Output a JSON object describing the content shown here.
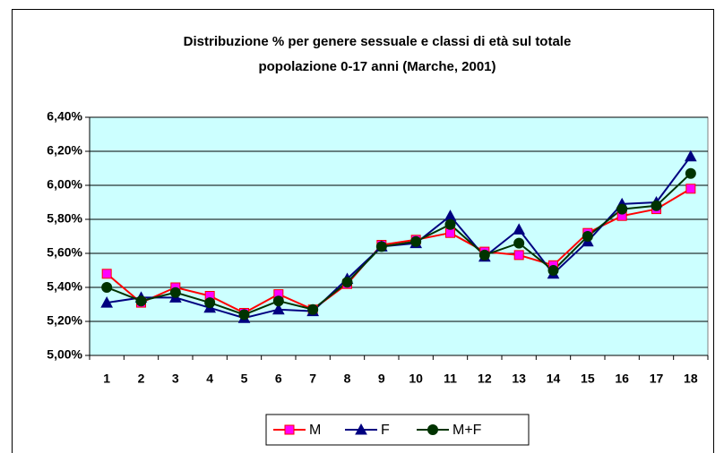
{
  "chart_data": {
    "type": "line",
    "title": [
      "Distribuzione % per genere sessuale e classi di età sul totale",
      "popolazione 0-17 anni (Marche, 2001)"
    ],
    "categories": [
      "1",
      "2",
      "3",
      "4",
      "5",
      "6",
      "7",
      "8",
      "9",
      "10",
      "11",
      "12",
      "13",
      "14",
      "15",
      "16",
      "17",
      "18"
    ],
    "series": [
      {
        "name": "M",
        "color": "#ff0000",
        "marker": "square",
        "marker_color": "#ff00ff",
        "values": [
          5.48,
          5.31,
          5.4,
          5.35,
          5.25,
          5.36,
          5.27,
          5.42,
          5.65,
          5.68,
          5.72,
          5.61,
          5.59,
          5.53,
          5.72,
          5.82,
          5.86,
          5.98
        ]
      },
      {
        "name": "F",
        "color": "#000080",
        "marker": "triangle",
        "marker_color": "#000080",
        "values": [
          5.31,
          5.34,
          5.34,
          5.28,
          5.22,
          5.27,
          5.26,
          5.45,
          5.64,
          5.66,
          5.82,
          5.58,
          5.74,
          5.48,
          5.67,
          5.89,
          5.9,
          6.17
        ]
      },
      {
        "name": "M+F",
        "color": "#003300",
        "marker": "circle",
        "marker_color": "#003300",
        "values": [
          5.4,
          5.32,
          5.37,
          5.31,
          5.24,
          5.32,
          5.27,
          5.43,
          5.64,
          5.67,
          5.77,
          5.59,
          5.66,
          5.5,
          5.7,
          5.86,
          5.88,
          6.07
        ]
      }
    ],
    "ylim": [
      5.0,
      6.4
    ],
    "yticks": [
      {
        "value": 5.0,
        "label": "5,00%"
      },
      {
        "value": 5.2,
        "label": "5,20%"
      },
      {
        "value": 5.4,
        "label": "5,40%"
      },
      {
        "value": 5.6,
        "label": "5,60%"
      },
      {
        "value": 5.8,
        "label": "5,80%"
      },
      {
        "value": 6.0,
        "label": "6,00%"
      },
      {
        "value": 6.2,
        "label": "6,20%"
      },
      {
        "value": 6.4,
        "label": "6,40%"
      }
    ],
    "grid": true,
    "plot_background": "#ccffff",
    "legend": "bottom"
  }
}
